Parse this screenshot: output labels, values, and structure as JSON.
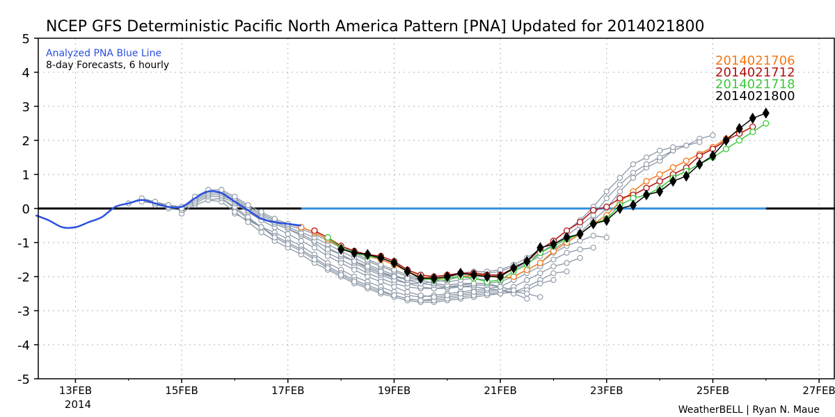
{
  "chart_data": {
    "type": "line",
    "title": "NCEP GFS Deterministic Pacific North America Pattern [PNA] Updated for 2014021800",
    "ylim": [
      -5,
      5
    ],
    "yticks": [
      "5",
      "4",
      "3",
      "2",
      "1",
      "0",
      "-1",
      "-2",
      "-3",
      "-4",
      "-5"
    ],
    "xlim_days": [
      12.3,
      27.3
    ],
    "xticks": [
      {
        "day": 13,
        "label": "13FEB"
      },
      {
        "day": 15,
        "label": "15FEB"
      },
      {
        "day": 17,
        "label": "17FEB"
      },
      {
        "day": 19,
        "label": "19FEB"
      },
      {
        "day": 21,
        "label": "21FEB"
      },
      {
        "day": 23,
        "label": "23FEB"
      },
      {
        "day": 25,
        "label": "25FEB"
      },
      {
        "day": 27,
        "label": "27FEB"
      }
    ],
    "year_label": "2014",
    "grid": true,
    "zero_line": true,
    "annotation_title": "Analyzed PNA Blue Line",
    "annotation_subtitle": "8-day Forecasts, 6 hourly",
    "analysis_color": "#2a4fe0",
    "analysis": {
      "x": [
        12.25,
        12.5,
        12.75,
        13.0,
        13.25,
        13.5,
        13.75,
        14.0,
        14.25,
        14.5,
        14.75,
        15.0,
        15.25,
        15.5,
        15.75,
        16.0,
        16.25,
        16.5,
        16.75,
        17.0,
        17.25
      ],
      "y": [
        -0.2,
        -0.35,
        -0.55,
        -0.55,
        -0.4,
        -0.25,
        0.05,
        0.15,
        0.25,
        0.15,
        0.05,
        0.05,
        0.3,
        0.5,
        0.45,
        0.2,
        -0.05,
        -0.3,
        -0.4,
        -0.45,
        -0.5
      ]
    },
    "forecast_members": [
      {
        "x": [
          16.25,
          16.5,
          16.75,
          17.0,
          17.25,
          17.5,
          17.75,
          18.0,
          18.25,
          18.5,
          18.75,
          19.0,
          19.25,
          19.5,
          19.75,
          20.0,
          20.25,
          20.5,
          20.75,
          21.0,
          21.25,
          21.5,
          21.75,
          22.0,
          22.25,
          22.5,
          22.75,
          23.0
        ],
        "y": [
          -0.1,
          -0.3,
          -0.45,
          -0.6,
          -0.8,
          -1.0,
          -1.3,
          -1.5,
          -1.7,
          -1.9,
          -2.05,
          -2.2,
          -2.3,
          -2.35,
          -2.35,
          -2.3,
          -2.25,
          -2.2,
          -2.2,
          -2.15,
          -2.0,
          -1.8,
          -1.6,
          -1.3,
          -1.1,
          -0.95,
          -0.8,
          -0.85
        ]
      },
      {
        "x": [
          16.0,
          16.25,
          16.5,
          16.75,
          17.0,
          17.25,
          17.5,
          17.75,
          18.0,
          18.25,
          18.5,
          18.75,
          19.0,
          19.25,
          19.5,
          19.75,
          20.0,
          20.25,
          20.5,
          20.75,
          21.0,
          21.25,
          21.5,
          21.75,
          22.0,
          22.25,
          22.5,
          22.75
        ],
        "y": [
          -0.15,
          -0.35,
          -0.55,
          -0.7,
          -0.9,
          -1.1,
          -1.35,
          -1.6,
          -1.8,
          -2.0,
          -2.15,
          -2.3,
          -2.45,
          -2.55,
          -2.6,
          -2.55,
          -2.5,
          -2.45,
          -2.4,
          -2.35,
          -2.3,
          -2.1,
          -1.9,
          -1.7,
          -1.5,
          -1.3,
          -1.2,
          -1.15
        ]
      },
      {
        "x": [
          15.75,
          16.0,
          16.25,
          16.5,
          16.75,
          17.0,
          17.25,
          17.5,
          17.75,
          18.0,
          18.25,
          18.5,
          18.75,
          19.0,
          19.25,
          19.5,
          19.75,
          20.0,
          20.25,
          20.5,
          20.75,
          21.0,
          21.25,
          21.5,
          21.75,
          22.0,
          22.25,
          22.5
        ],
        "y": [
          0.3,
          0.0,
          -0.3,
          -0.55,
          -0.8,
          -1.0,
          -1.2,
          -1.45,
          -1.7,
          -1.9,
          -2.1,
          -2.25,
          -2.4,
          -2.55,
          -2.65,
          -2.7,
          -2.65,
          -2.6,
          -2.55,
          -2.5,
          -2.45,
          -2.45,
          -2.3,
          -2.1,
          -1.9,
          -1.7,
          -1.6,
          -1.45
        ]
      },
      {
        "x": [
          15.5,
          15.75,
          16.0,
          16.25,
          16.5,
          16.75,
          17.0,
          17.25,
          17.5,
          17.75,
          18.0,
          18.25,
          18.5,
          18.75,
          19.0,
          19.25,
          19.5,
          19.75,
          20.0,
          20.25,
          20.5,
          20.75,
          21.0,
          21.25,
          21.5,
          21.75,
          22.0,
          22.25
        ],
        "y": [
          0.25,
          0.2,
          -0.1,
          -0.4,
          -0.7,
          -0.95,
          -1.15,
          -1.35,
          -1.6,
          -1.8,
          -2.0,
          -2.2,
          -2.35,
          -2.5,
          -2.6,
          -2.7,
          -2.75,
          -2.75,
          -2.7,
          -2.65,
          -2.6,
          -2.55,
          -2.5,
          -2.45,
          -2.3,
          -2.1,
          -1.9,
          -1.85
        ]
      },
      {
        "x": [
          15.25,
          15.5,
          15.75,
          16.0,
          16.25,
          16.5,
          16.75,
          17.0,
          17.25,
          17.5,
          17.75,
          18.0,
          18.25,
          18.5,
          18.75,
          19.0,
          19.25,
          19.5,
          19.75,
          20.0,
          20.25,
          20.5,
          20.75,
          21.0,
          21.25,
          21.5,
          21.75,
          22.0
        ],
        "y": [
          0.1,
          0.25,
          0.3,
          0.05,
          -0.25,
          -0.55,
          -0.85,
          -1.05,
          -1.25,
          -1.5,
          -1.75,
          -1.95,
          -2.15,
          -2.3,
          -2.45,
          -2.55,
          -2.65,
          -2.7,
          -2.7,
          -2.65,
          -2.6,
          -2.55,
          -2.5,
          -2.5,
          -2.45,
          -2.4,
          -2.2,
          -2.1
        ]
      },
      {
        "x": [
          15.0,
          15.25,
          15.5,
          15.75,
          16.0,
          16.25,
          16.5,
          16.75,
          17.0,
          17.25,
          17.5,
          17.75,
          18.0,
          18.25,
          18.5,
          18.75,
          19.0,
          19.25,
          19.5,
          19.75,
          20.0,
          20.25,
          20.5,
          20.75,
          21.0,
          21.25,
          21.5,
          21.75
        ],
        "y": [
          -0.15,
          0.15,
          0.35,
          0.35,
          0.15,
          -0.1,
          -0.35,
          -0.55,
          -0.75,
          -0.95,
          -1.15,
          -1.4,
          -1.6,
          -1.8,
          -2.0,
          -2.15,
          -2.3,
          -2.45,
          -2.55,
          -2.6,
          -2.55,
          -2.5,
          -2.45,
          -2.4,
          -2.4,
          -2.45,
          -2.5,
          -2.6
        ]
      },
      {
        "x": [
          14.75,
          15.0,
          15.25,
          15.5,
          15.75,
          16.0,
          16.25,
          16.5,
          16.75,
          17.0,
          17.25,
          17.5,
          17.75,
          18.0,
          18.25,
          18.5,
          18.75,
          19.0,
          19.25,
          19.5,
          19.75,
          20.0,
          20.25,
          20.5,
          20.75,
          21.0,
          21.25,
          21.5
        ],
        "y": [
          0.0,
          -0.05,
          0.2,
          0.4,
          0.4,
          0.2,
          -0.05,
          -0.25,
          -0.45,
          -0.6,
          -0.75,
          -0.95,
          -1.15,
          -1.35,
          -1.55,
          -1.75,
          -1.9,
          -2.05,
          -2.2,
          -2.3,
          -2.35,
          -2.35,
          -2.3,
          -2.3,
          -2.35,
          -2.4,
          -2.5,
          -2.65
        ]
      },
      {
        "x": [
          14.5,
          14.75,
          15.0,
          15.25,
          15.5,
          15.75,
          16.0,
          16.25,
          16.5,
          16.75,
          17.0,
          17.25,
          17.5,
          17.75,
          18.0,
          18.25,
          18.5,
          18.75,
          19.0,
          19.25,
          19.5,
          19.75,
          20.0,
          20.25,
          20.5,
          20.75,
          21.0,
          21.25
        ],
        "y": [
          0.1,
          0.05,
          0.0,
          0.25,
          0.45,
          0.45,
          0.25,
          0.0,
          -0.2,
          -0.4,
          -0.55,
          -0.7,
          -0.85,
          -1.05,
          -1.25,
          -1.45,
          -1.65,
          -1.8,
          -1.95,
          -2.1,
          -2.2,
          -2.25,
          -2.3,
          -2.3,
          -2.25,
          -2.25,
          -2.3,
          -2.4
        ]
      },
      {
        "x": [
          14.25,
          14.5,
          14.75,
          15.0,
          15.25,
          15.5,
          15.75,
          16.0,
          16.25,
          16.5,
          16.75,
          17.0,
          17.25,
          17.5,
          17.75,
          18.0,
          18.25,
          18.5,
          18.75,
          19.0,
          19.25,
          19.5,
          19.75,
          20.0,
          20.25,
          20.5,
          20.75,
          21.0
        ],
        "y": [
          0.2,
          0.15,
          0.1,
          0.05,
          0.3,
          0.5,
          0.5,
          0.3,
          0.05,
          -0.15,
          -0.35,
          -0.5,
          -0.6,
          -0.75,
          -0.95,
          -1.15,
          -1.35,
          -1.55,
          -1.7,
          -1.85,
          -2.0,
          -2.1,
          -2.2,
          -2.25,
          -2.2,
          -2.2,
          -2.2,
          -2.3
        ]
      },
      {
        "x": [
          14.0,
          14.25,
          14.5,
          14.75,
          15.0,
          15.25,
          15.5,
          15.75,
          16.0,
          16.25,
          16.5,
          16.75,
          17.0,
          17.25,
          17.5,
          17.75,
          18.0,
          18.25,
          18.5,
          18.75,
          19.0,
          19.25,
          19.5,
          19.75,
          20.0,
          20.25,
          20.5,
          20.75
        ],
        "y": [
          0.15,
          0.3,
          0.2,
          0.1,
          0.0,
          0.35,
          0.55,
          0.55,
          0.35,
          0.1,
          -0.1,
          -0.3,
          -0.45,
          -0.55,
          -0.7,
          -0.9,
          -1.1,
          -1.3,
          -1.5,
          -1.65,
          -1.8,
          -1.95,
          -2.05,
          -2.1,
          -2.15,
          -2.1,
          -2.05,
          -2.1
        ]
      },
      {
        "x": [
          18.25,
          18.5,
          18.75,
          19.0,
          19.25,
          19.5,
          19.75,
          20.0,
          20.25,
          20.5,
          20.75,
          21.0,
          21.25,
          21.5,
          21.75,
          22.0,
          22.25,
          22.5,
          22.75,
          23.0,
          23.25,
          23.5,
          23.75,
          24.0,
          24.25,
          24.5,
          24.75,
          25.0
        ],
        "y": [
          -1.6,
          -1.8,
          -1.95,
          -2.1,
          -2.2,
          -2.2,
          -2.15,
          -2.1,
          -2.0,
          -2.0,
          -2.0,
          -1.95,
          -1.8,
          -1.6,
          -1.4,
          -1.2,
          -0.95,
          -0.7,
          -0.35,
          0.0,
          0.5,
          0.9,
          1.2,
          1.4,
          1.7,
          1.85,
          2.05,
          2.15
        ]
      },
      {
        "x": [
          18.0,
          18.25,
          18.5,
          18.75,
          19.0,
          19.25,
          19.5,
          19.75,
          20.0,
          20.25,
          20.5,
          20.75,
          21.0,
          21.25,
          21.5,
          21.75,
          22.0,
          22.25,
          22.5,
          22.75,
          23.0,
          23.25,
          23.5,
          23.75,
          24.0,
          24.25,
          24.5,
          24.75
        ],
        "y": [
          -1.4,
          -1.55,
          -1.75,
          -1.9,
          -2.0,
          -2.1,
          -2.1,
          -2.05,
          -2.0,
          -1.95,
          -1.9,
          -1.9,
          -1.85,
          -1.7,
          -1.55,
          -1.3,
          -1.05,
          -0.8,
          -0.5,
          -0.2,
          0.3,
          0.7,
          1.05,
          1.3,
          1.5,
          1.7,
          1.85,
          1.95
        ]
      },
      {
        "x": [
          17.75,
          18.0,
          18.25,
          18.5,
          18.75,
          19.0,
          19.25,
          19.5,
          19.75,
          20.0,
          20.25,
          20.5,
          20.75,
          21.0,
          21.25,
          21.5,
          21.75,
          22.0,
          22.25,
          22.5,
          22.75,
          23.0,
          23.25,
          23.5,
          23.75,
          24.0,
          24.25,
          24.5
        ],
        "y": [
          -1.2,
          -1.35,
          -1.55,
          -1.7,
          -1.85,
          -2.0,
          -2.05,
          -2.05,
          -2.0,
          -1.95,
          -1.9,
          -1.85,
          -1.85,
          -1.8,
          -1.65,
          -1.45,
          -1.2,
          -0.95,
          -0.65,
          -0.35,
          0.05,
          0.5,
          0.9,
          1.3,
          1.5,
          1.7,
          1.8,
          1.85
        ]
      }
    ],
    "series": [
      {
        "name": "2014021706",
        "color": "#f07818",
        "x": [
          17.25,
          17.5,
          17.75,
          18.0,
          18.25,
          18.5,
          18.75,
          19.0,
          19.25,
          19.5,
          19.75,
          20.0,
          20.25,
          20.5,
          20.75,
          21.0,
          21.25,
          21.5,
          21.75,
          22.0,
          22.25,
          22.5,
          22.75,
          23.0,
          23.25,
          23.5,
          23.75,
          24.0,
          24.25,
          24.5,
          24.75,
          25.0,
          25.25,
          25.5
        ],
        "y": [
          -0.55,
          -0.7,
          -0.9,
          -1.15,
          -1.3,
          -1.4,
          -1.5,
          -1.65,
          -1.85,
          -2.0,
          -2.05,
          -2.05,
          -2.0,
          -1.95,
          -1.95,
          -2.05,
          -2.0,
          -1.8,
          -1.6,
          -1.25,
          -1.0,
          -0.75,
          -0.45,
          -0.2,
          0.2,
          0.5,
          0.8,
          1.0,
          1.2,
          1.4,
          1.6,
          1.8,
          2.05,
          2.3
        ]
      },
      {
        "name": "2014021712",
        "color": "#b01010",
        "x": [
          17.5,
          17.75,
          18.0,
          18.25,
          18.5,
          18.75,
          19.0,
          19.25,
          19.5,
          19.75,
          20.0,
          20.25,
          20.5,
          20.75,
          21.0,
          21.25,
          21.5,
          21.75,
          22.0,
          22.25,
          22.5,
          22.75,
          23.0,
          23.25,
          23.5,
          23.75,
          24.0,
          24.25,
          24.5,
          24.75,
          25.0,
          25.25,
          25.5,
          25.75
        ],
        "y": [
          -0.65,
          -0.85,
          -1.1,
          -1.25,
          -1.35,
          -1.4,
          -1.55,
          -1.8,
          -1.95,
          -2.0,
          -1.95,
          -1.9,
          -1.9,
          -1.95,
          -1.95,
          -1.75,
          -1.55,
          -1.2,
          -0.95,
          -0.65,
          -0.4,
          -0.05,
          0.05,
          0.3,
          0.4,
          0.6,
          0.8,
          1.0,
          1.2,
          1.55,
          1.75,
          2.0,
          2.2,
          2.4
        ]
      },
      {
        "name": "2014021718",
        "color": "#3cc83c",
        "x": [
          17.75,
          18.0,
          18.25,
          18.5,
          18.75,
          19.0,
          19.25,
          19.5,
          19.75,
          20.0,
          20.25,
          20.5,
          20.75,
          21.0,
          21.25,
          21.5,
          21.75,
          22.0,
          22.25,
          22.5,
          22.75,
          23.0,
          23.25,
          23.5,
          23.75,
          24.0,
          24.25,
          24.5,
          24.75,
          25.0,
          25.25,
          25.5,
          25.75,
          26.0
        ],
        "y": [
          -0.85,
          -1.15,
          -1.3,
          -1.4,
          -1.45,
          -1.6,
          -1.85,
          -2.05,
          -2.1,
          -2.05,
          -2.0,
          -2.05,
          -2.15,
          -2.1,
          -1.85,
          -1.65,
          -1.3,
          -1.1,
          -0.9,
          -0.75,
          -0.45,
          -0.3,
          0.1,
          0.3,
          0.4,
          0.6,
          0.9,
          1.1,
          1.3,
          1.5,
          1.75,
          2.0,
          2.25,
          2.5
        ]
      },
      {
        "name": "2014021800",
        "color": "#000000",
        "x": [
          18.0,
          18.25,
          18.5,
          18.75,
          19.0,
          19.25,
          19.5,
          19.75,
          20.0,
          20.25,
          20.5,
          20.75,
          21.0,
          21.25,
          21.5,
          21.75,
          22.0,
          22.25,
          22.5,
          22.75,
          23.0,
          23.25,
          23.5,
          23.75,
          24.0,
          24.25,
          24.5,
          24.75,
          25.0,
          25.25,
          25.5,
          25.75,
          26.0
        ],
        "y": [
          -1.2,
          -1.3,
          -1.35,
          -1.45,
          -1.6,
          -1.85,
          -2.05,
          -2.05,
          -2.0,
          -1.9,
          -1.95,
          -2.0,
          -2.0,
          -1.75,
          -1.55,
          -1.15,
          -1.05,
          -0.85,
          -0.75,
          -0.45,
          -0.35,
          0.0,
          0.1,
          0.4,
          0.5,
          0.8,
          0.95,
          1.3,
          1.55,
          2.0,
          2.35,
          2.65,
          2.8
        ]
      }
    ],
    "flat_line": {
      "x_start": 17.25,
      "x_end": 26.0,
      "y": 0.0,
      "color": "#3090e0"
    },
    "credit": "WeatherBELL | Ryan N. Maue"
  }
}
